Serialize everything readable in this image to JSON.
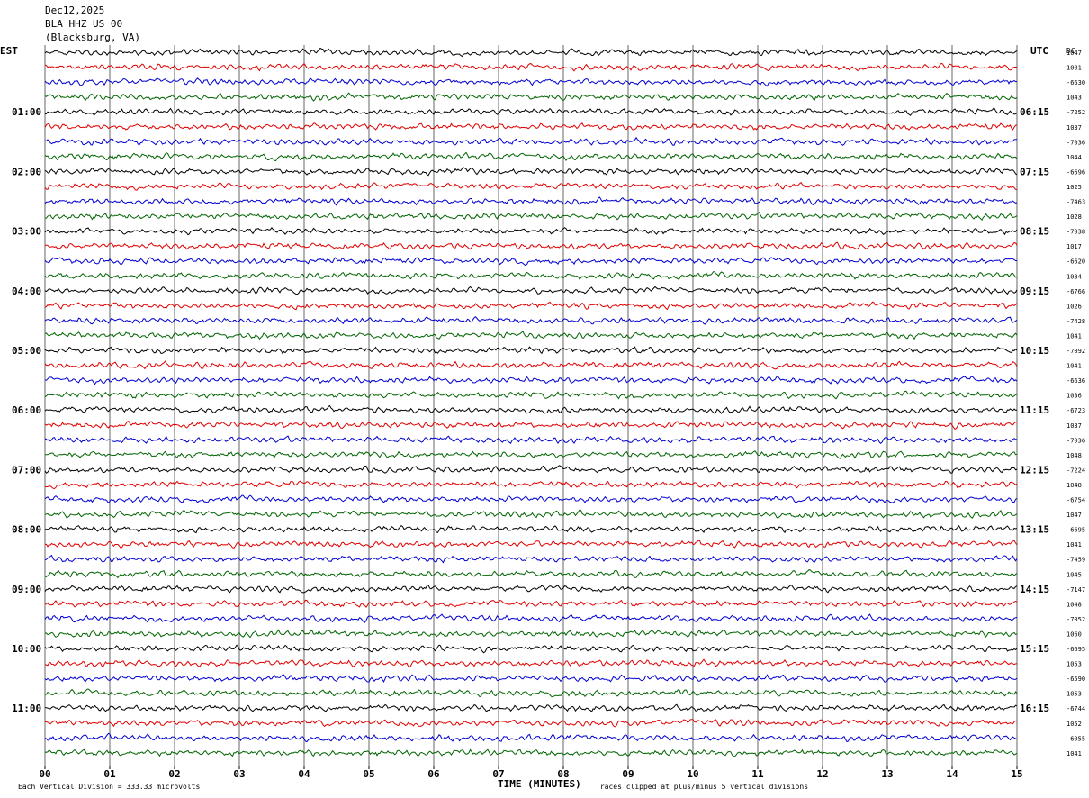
{
  "header": {
    "date": "Dec12,2025",
    "station": "BLA HHZ US 00",
    "location": "(Blacksburg, VA)"
  },
  "left_label": "EST",
  "right_label": "UTC",
  "dc_label": "DC",
  "colors": [
    "#000000",
    "#e00000",
    "#0000d0",
    "#006400"
  ],
  "footer": {
    "xlabel": "TIME (MINUTES)",
    "scale_note": "Each Vertical Division =  333.33 microvolts",
    "clip_note": "Traces clipped at plus/minus 5 vertical divisions"
  },
  "chart_data": {
    "type": "line",
    "title": "BLA HHZ US 00",
    "xlabel": "TIME (MINUTES)",
    "xlim": [
      0,
      15
    ],
    "x_ticks": [
      "00",
      "01",
      "02",
      "03",
      "04",
      "05",
      "06",
      "07",
      "08",
      "09",
      "10",
      "11",
      "12",
      "13",
      "14",
      "15"
    ],
    "minutes_per_trace": 15,
    "trace_count": 48,
    "trace_colors_cycle": [
      "black",
      "red",
      "blue",
      "green"
    ],
    "hour_rows": [
      {
        "est": "",
        "utc": ""
      },
      {
        "est": "01:00",
        "utc": "06:15"
      },
      {
        "est": "02:00",
        "utc": "07:15"
      },
      {
        "est": "03:00",
        "utc": "08:15"
      },
      {
        "est": "04:00",
        "utc": "09:15"
      },
      {
        "est": "05:00",
        "utc": "10:15"
      },
      {
        "est": "06:00",
        "utc": "11:15"
      },
      {
        "est": "07:00",
        "utc": "12:15"
      },
      {
        "est": "08:00",
        "utc": "13:15"
      },
      {
        "est": "09:00",
        "utc": "14:15"
      },
      {
        "est": "10:00",
        "utc": "15:15"
      },
      {
        "est": "11:00",
        "utc": "16:15"
      }
    ],
    "dc_offsets": [
      "1047",
      "1001",
      "-6630",
      "1043",
      "-7252",
      "1037",
      "-7036",
      "1044",
      "-6696",
      "1025",
      "-7463",
      "1028",
      "-7038",
      "1017",
      "-6620",
      "1034",
      "-6766",
      "1026",
      "-7428",
      "1041",
      "-7092",
      "1041",
      "-6636",
      "1036",
      "-6723",
      "1037",
      "-7036",
      "1048",
      "-7224",
      "1048",
      "-6754",
      "1047",
      "-6695",
      "1041",
      "-7459",
      "1045",
      "-7147",
      "1048",
      "-7052",
      "1060",
      "-6695",
      "1053",
      "-6590",
      "1053",
      "-6744",
      "1052",
      "-6055",
      "1041"
    ],
    "scale_microvolts_per_division": 333.33,
    "clip_divisions": 5
  }
}
